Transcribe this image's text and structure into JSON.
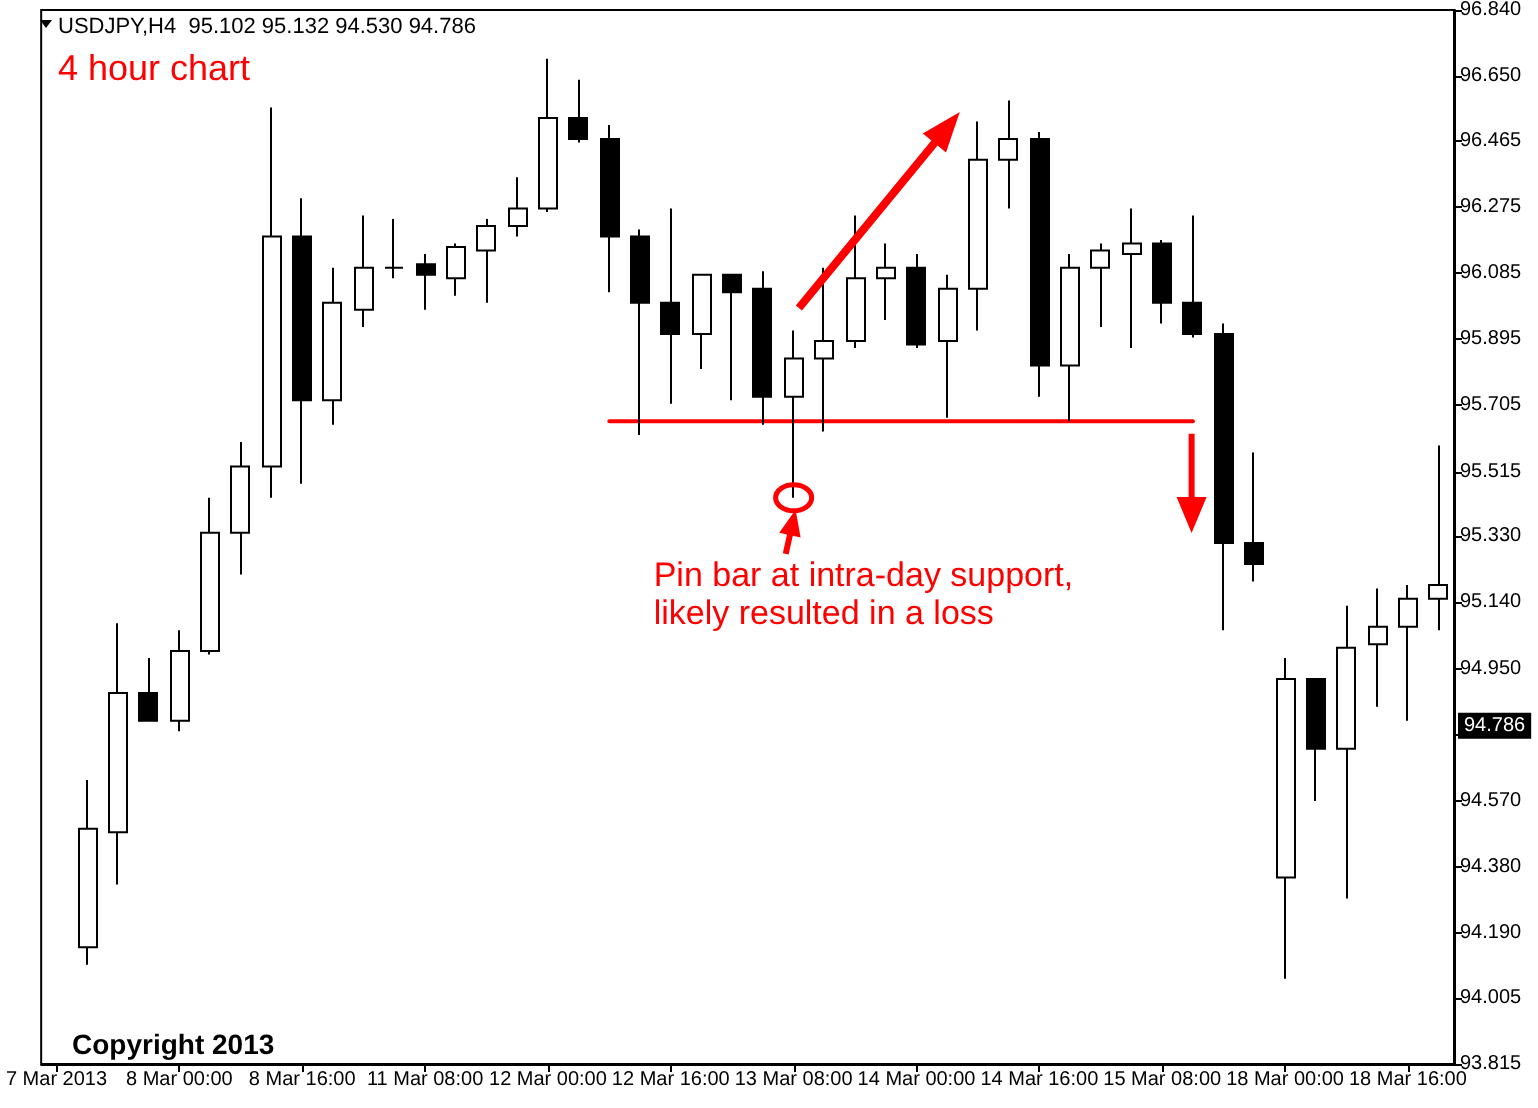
{
  "chart_data": {
    "type": "candlestick",
    "title": "USDJPY,H4  95.102 95.132 94.530 94.786",
    "subtitle": "4 hour chart",
    "categories": [
      "7 Mar 2013",
      null,
      null,
      null,
      "8 Mar 00:00",
      null,
      null,
      null,
      "8 Mar 16:00",
      null,
      null,
      null,
      "11 Mar 08:00",
      null,
      null,
      null,
      "12 Mar 00:00",
      null,
      null,
      null,
      "12 Mar 16:00",
      null,
      null,
      null,
      "13 Mar 08:00",
      null,
      null,
      null,
      "14 Mar 00:00",
      null,
      null,
      null,
      "14 Mar 16:00",
      null,
      null,
      null,
      "15 Mar 08:00",
      null,
      null,
      null,
      "18 Mar 00:00",
      null,
      null,
      null,
      "18 Mar 16:00",
      null
    ],
    "ohlc": [
      null,
      [
        94.15,
        94.63,
        94.1,
        94.49
      ],
      [
        94.48,
        95.08,
        94.33,
        94.88
      ],
      [
        94.88,
        94.98,
        94.8,
        94.8
      ],
      [
        94.8,
        95.06,
        94.77,
        95.0
      ],
      [
        95.0,
        95.44,
        94.99,
        95.34
      ],
      [
        95.34,
        95.6,
        95.22,
        95.53
      ],
      [
        95.53,
        96.56,
        95.44,
        96.19
      ],
      [
        96.19,
        96.3,
        95.48,
        95.72
      ],
      [
        95.72,
        96.1,
        95.65,
        96.0
      ],
      [
        95.98,
        96.25,
        95.93,
        96.1
      ],
      [
        96.1,
        96.24,
        96.07,
        96.1
      ],
      [
        96.11,
        96.14,
        95.98,
        96.08
      ],
      [
        96.07,
        96.17,
        96.02,
        96.16
      ],
      [
        96.15,
        96.24,
        96.0,
        96.22
      ],
      [
        96.22,
        96.36,
        96.19,
        96.27
      ],
      [
        96.27,
        96.7,
        96.26,
        96.53
      ],
      [
        96.53,
        96.64,
        96.46,
        96.47
      ],
      [
        96.47,
        96.51,
        96.03,
        96.19
      ],
      [
        96.19,
        96.21,
        95.62,
        96.0
      ],
      [
        96.0,
        96.27,
        95.71,
        95.91
      ],
      [
        95.91,
        96.08,
        95.81,
        96.08
      ],
      [
        96.08,
        96.08,
        95.72,
        96.03
      ],
      [
        96.04,
        96.09,
        95.65,
        95.73
      ],
      [
        95.73,
        95.92,
        95.44,
        95.84
      ],
      [
        95.84,
        96.1,
        95.63,
        95.89
      ],
      [
        95.89,
        96.25,
        95.87,
        96.07
      ],
      [
        96.07,
        96.17,
        95.95,
        96.1
      ],
      [
        96.1,
        96.14,
        95.87,
        95.88
      ],
      [
        95.89,
        96.08,
        95.67,
        96.04
      ],
      [
        96.04,
        96.52,
        95.92,
        96.41
      ],
      [
        96.41,
        96.58,
        96.27,
        96.47
      ],
      [
        96.47,
        96.49,
        95.73,
        95.82
      ],
      [
        95.82,
        96.14,
        95.66,
        96.1
      ],
      [
        96.1,
        96.17,
        95.93,
        96.15
      ],
      [
        96.14,
        96.27,
        95.87,
        96.17
      ],
      [
        96.17,
        96.18,
        95.94,
        96.0
      ],
      [
        96.0,
        96.25,
        95.9,
        95.91
      ],
      [
        95.91,
        95.94,
        95.06,
        95.31
      ],
      [
        95.31,
        95.57,
        95.2,
        95.25
      ],
      [
        94.35,
        94.98,
        94.06,
        94.92
      ],
      [
        94.92,
        94.92,
        94.57,
        94.72
      ],
      [
        94.72,
        95.13,
        94.29,
        95.01
      ],
      [
        95.02,
        95.18,
        94.84,
        95.07
      ],
      [
        95.07,
        95.19,
        94.8,
        95.15
      ],
      [
        95.15,
        95.59,
        95.06,
        95.19
      ]
    ],
    "color": "#000000",
    "series": [
      {
        "type": "line",
        "color": "#ff0000",
        "values": [
          null,
          null,
          null,
          null,
          null,
          null,
          null,
          null,
          null,
          null,
          null,
          null,
          null,
          null,
          null,
          null,
          null,
          null,
          95.66,
          95.66,
          95.66,
          95.66,
          95.66,
          95.66,
          95.66,
          95.66,
          95.66,
          95.66,
          95.66,
          95.66,
          95.66,
          95.66,
          95.66,
          95.66,
          95.66,
          95.66,
          95.66,
          95.66,
          null,
          null,
          null,
          null,
          null,
          null,
          null,
          null
        ]
      }
    ],
    "ylim": [
      93.815,
      96.84
    ],
    "yticks": [
      {
        "value": 93.815,
        "label": "93.815"
      },
      {
        "value": 94.005,
        "label": "94.005"
      },
      {
        "value": 94.19,
        "label": "94.190"
      },
      {
        "value": 94.38,
        "label": "94.380"
      },
      {
        "value": 94.57,
        "label": "94.570"
      },
      {
        "value": 94.76,
        "label": null
      },
      {
        "value": 94.95,
        "label": "94.950"
      },
      {
        "value": 95.14,
        "label": "95.140"
      },
      {
        "value": 95.33,
        "label": "95.330"
      },
      {
        "value": 95.515,
        "label": "95.515"
      },
      {
        "value": 95.705,
        "label": "95.705"
      },
      {
        "value": 95.895,
        "label": "95.895"
      },
      {
        "value": 96.085,
        "label": "96.085"
      },
      {
        "value": 96.275,
        "label": "96.275"
      },
      {
        "value": 96.465,
        "label": "96.465"
      },
      {
        "value": 96.65,
        "label": "96.650"
      },
      {
        "value": 96.84,
        "label": "96.840"
      }
    ],
    "annotations": [
      {
        "text": "Pin bar at intra-day support,\nlikely resulted in a loss",
        "x": "13 Mar 08:00",
        "y": 95.44
      },
      {
        "text": "94.786",
        "y": 94.786
      },
      "Copyright 2013"
    ]
  }
}
